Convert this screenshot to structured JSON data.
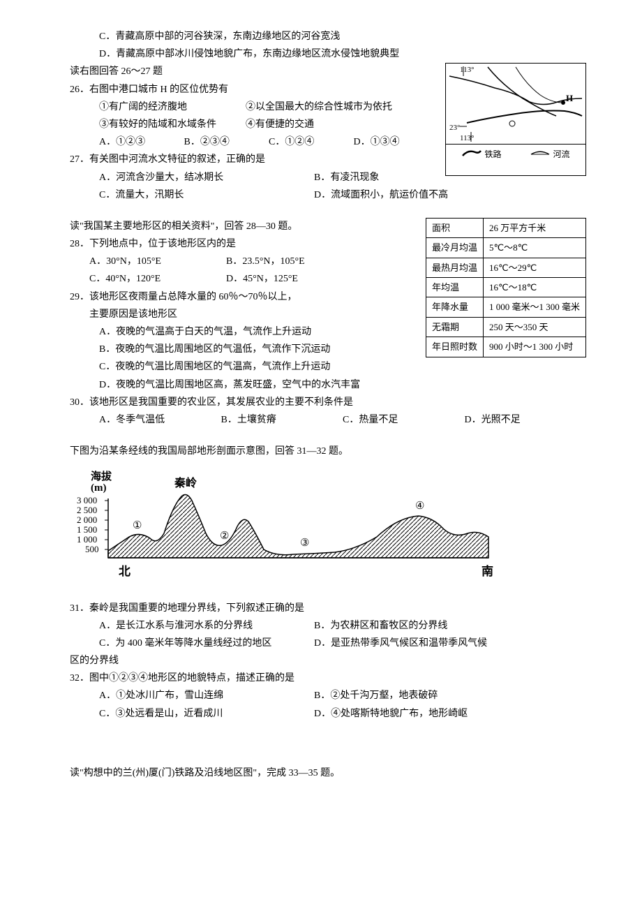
{
  "prior": {
    "c": "C．青藏高原中部的河谷狭深，东南边缘地区的河谷宽浅",
    "d": "D．青藏高原中部冰川侵蚀地貌广布，东南边缘地区流水侵蚀地貌典型"
  },
  "intro26": "读右图回答 26～27 题",
  "q26": {
    "stem": "26．右图中港口城市 H 的区位优势有",
    "n1": "①有广阔的经济腹地",
    "n2": "②以全国最大的综合性城市为依托",
    "n3": "③有较好的陆域和水域条件",
    "n4": "④有便捷的交通",
    "a": "A．①②③",
    "b": "B．②③④",
    "c": "C．①②④",
    "d": "D．①③④"
  },
  "q27": {
    "stem": "27．有关图中河流水文特征的叙述，正确的是",
    "a": "A．河流含沙量大，结冰期长",
    "b": "B．有凌汛现象",
    "c": "C．流量大，汛期长",
    "d": "D．流域面积小，航运价值不高"
  },
  "map": {
    "lon1": "113°",
    "lon2": "113°",
    "lat": "23°",
    "h": "H",
    "legend_rail": "铁路",
    "legend_river": "河流"
  },
  "intro28": "读\"我国某主要地形区的相关资料\"，回答 28—30 题。",
  "q28": {
    "stem": "28．下列地点中，位于该地形区内的是",
    "a": "A．30°N，105°E",
    "b": "B．23.5°N，105°E",
    "c": "C．40°N，120°E",
    "d": "D．45°N，125°E"
  },
  "q29": {
    "stem": "29．该地形区夜雨量占总降水量的 60％～70％以上，",
    "stem2": "主要原因是该地形区",
    "a": "A．夜晚的气温高于白天的气温，气流作上升运动",
    "b": "B．夜晚的气温比周围地区的气温低，气流作下沉运动",
    "c": "C．夜晚的气温比周围地区的气温高，气流作上升运动",
    "d": "D．夜晚的气温比周围地区高，蒸发旺盛，空气中的水汽丰富"
  },
  "q30": {
    "stem": "30．该地形区是我国重要的农业区，其发展农业的主要不利条件是",
    "a": "A．冬季气温低",
    "b": "B．土壤贫瘠",
    "c": "C．热量不足",
    "d": "D．光照不足"
  },
  "table": {
    "rows": [
      [
        "面积",
        "26 万平方千米"
      ],
      [
        "最冷月均温",
        "5℃～8℃"
      ],
      [
        "最热月均温",
        "16℃～29℃"
      ],
      [
        "年均温",
        "16℃～18℃"
      ],
      [
        "年降水量",
        "1 000 毫米～1 300 毫米"
      ],
      [
        "无霜期",
        "250 天～350 天"
      ],
      [
        "年日照时数",
        "900 小时～1 300 小时"
      ]
    ]
  },
  "intro31": "下图为沿某条经线的我国局部地形剖面示意图，回答 31—32 题。",
  "profile": {
    "ylabel": "海拔\n(m)",
    "ticks": [
      "3 000",
      "2 500",
      "2 000",
      "1 500",
      "1 000",
      "500"
    ],
    "qinling": "秦岭",
    "m1": "①",
    "m2": "②",
    "m3": "③",
    "m4": "④",
    "north": "北",
    "south": "南"
  },
  "q31": {
    "stem": "31．秦岭是我国重要的地理分界线，下列叙述正确的是",
    "a": "A．是长江水系与淮河水系的分界线",
    "b": "B．为农耕区和畜牧区的分界线",
    "c": "C．为 400 毫米年等降水量线经过的地区",
    "d": "D．是亚热带季风气候区和温带季风气候"
  },
  "q31tail": "区的分界线",
  "q32": {
    "stem": "32．图中①②③④地形区的地貌特点，描述正确的是",
    "a": "A．①处冰川广布，雪山连绵",
    "b": "B．②处千沟万壑，地表破碎",
    "c": "C．③处远看是山，近看成川",
    "d": "D．④处喀斯特地貌广布，地形崎岖"
  },
  "intro33": "读\"构想中的兰(州)厦(门)铁路及沿线地区图\"，完成 33—35 题。"
}
